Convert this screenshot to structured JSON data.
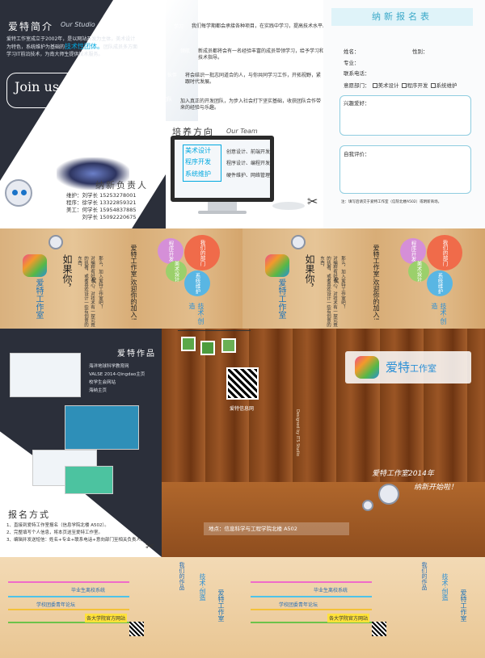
{
  "intro": {
    "title_cn": "爱特简介",
    "title_en": "Our Studio",
    "text": "爱特工作室成立于2002年，是以网站开发为主体，美术设计为特色，系统维护为基础的",
    "highlight": "技术性团体。",
    "text2": "团队成员多方面学习IT前沿技术，为南大师生提供技术服务。",
    "join": "Join us, IT Studio",
    "recruit_title": "纳新负责人",
    "contacts": [
      "维护：刘学长 15253278001",
      "程序：徐学长 13322859321",
      "美工：何学长 15954837885",
      "　　　刘学长 15092220675"
    ]
  },
  "team": {
    "bubbles": [
      {
        "label": "学习",
        "text": "我们每学期都会承接各种项目，在实践中学习，提高技术水平。",
        "color": "#f2c300"
      },
      {
        "label": "领航",
        "text": "新成员都将会有一名经验丰富的成员带领学习，给予学习和技术指导。",
        "color": "#ec6a9c"
      },
      {
        "label": "伙伴",
        "text": "将会结识一批志同道合的人，与你共同学习工作，开拓视野，紧跟时代发展。",
        "color": "#26b3e0"
      },
      {
        "label": "团队",
        "text": "加入真正的开发团队，为步入社会打下坚实基础，收获团队合作带来的经验与乐趣。",
        "color": "#3f9e3f"
      }
    ],
    "section_title": "培养方向",
    "section_en": "Our Team",
    "roles": [
      {
        "role": "美术设计",
        "desc": "创意设计、前端开发"
      },
      {
        "role": "程序开发",
        "desc": "程序设计、编程开发"
      },
      {
        "role": "系统维护",
        "desc": "硬件维护、网络管理"
      }
    ]
  },
  "form": {
    "title": "纳新报名表",
    "name_label": "姓名：",
    "gender_label": "性别：",
    "major_label": "专业：",
    "phone_label": "联系电话：",
    "dept_label": "意愿部门：",
    "dept_options": [
      "美术设计",
      "程序开发",
      "系统维护"
    ],
    "hobby_label": "兴趣爱好：",
    "eval_label": "自我评价：",
    "note": "注：填写后请交于爱特工作室（信院北楼A502）或明新商场。"
  },
  "wood_card": {
    "logo": "爱特工作室",
    "logo_sub": "ITS TUDIO",
    "slogan_a": "如果你，",
    "slogan_b": "对编程有好奇心，对技术有一探究竟的执著，或者喜欢设计一些有创意的东西，",
    "slogan_c": "那么，加入爱特工作室吧！",
    "or": "or",
    "line2": "爱特工作室,欢迎你的加入!",
    "circles": [
      "程序开发",
      "我们的部门",
      "美术设计",
      "系统维护"
    ],
    "brand": "技术·创造",
    "colors": [
      "#e8a0d6",
      "#f06b4a",
      "#9bd06b",
      "#59b6e3"
    ]
  },
  "works": {
    "title": "爱特作品",
    "items": [
      "海洋地球科学教育网",
      "VALSE 2014-Qingdao主页",
      "校学生会网站",
      "海纳主页"
    ],
    "signup_title": "报名方式",
    "steps": [
      "1、直接到爱特工作室报名（信息学院北楼 A502）。",
      "2、完整填写个人信息，将本页送至爱特工作室。",
      "3、编辑并发送短信：姓名+专业+联系电话+意向部门至相关负责人。"
    ]
  },
  "stage": {
    "qr_caption": "爱特信息网",
    "logo_cn": "爱特",
    "logo_cn2": "工作室",
    "vertical": "Designed by ITS Studio",
    "greet_line1": "爱特工作室2014年",
    "greet_line2": "纳新开始啦！",
    "address": "地点：信息科学与工程学院北楼 A502"
  },
  "bottom": {
    "items": [
      "毕业生离校系统",
      "学校团委青年论坛",
      "各大学院官方网站"
    ],
    "side": "我们的作品",
    "brand": "技术·创造",
    "logo": "爱特工作室"
  }
}
